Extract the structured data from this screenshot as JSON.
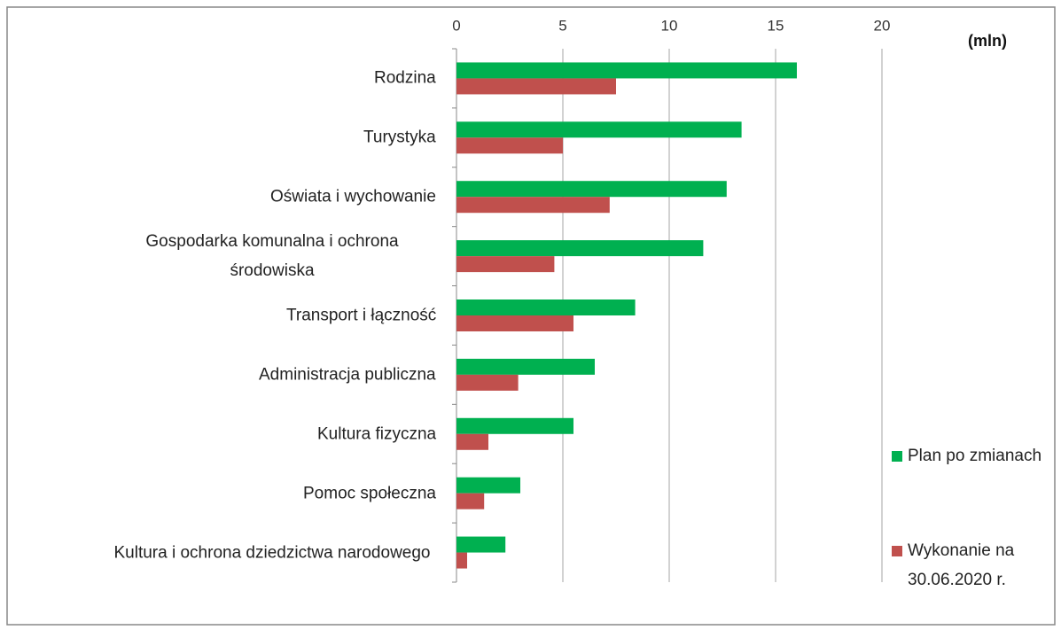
{
  "chart_data": {
    "type": "hbar",
    "unit_label": "(mln)",
    "categories": [
      "Rodzina",
      "Turystyka",
      "Oświata i wychowanie",
      "Gospodarka komunalna i ochrona środowiska",
      "Transport i łączność",
      "Administracja publiczna",
      "Kultura fizyczna",
      "Pomoc społeczna",
      "Kultura i ochrona dziedzictwa narodowego"
    ],
    "series": [
      {
        "name": "Plan po zmianach",
        "color": "#00b050",
        "values": [
          16.0,
          13.4,
          12.7,
          11.6,
          8.4,
          6.5,
          5.5,
          3.0,
          2.3
        ]
      },
      {
        "name": "Wykonanie na 30.06.2020 r.",
        "color": "#c0504d",
        "values": [
          7.5,
          5.0,
          7.2,
          4.6,
          5.5,
          2.9,
          1.5,
          1.3,
          0.5
        ]
      }
    ],
    "xlim": [
      0,
      20
    ],
    "xticks": [
      0,
      5,
      10,
      15,
      20
    ],
    "grid": true,
    "legend": "right"
  }
}
